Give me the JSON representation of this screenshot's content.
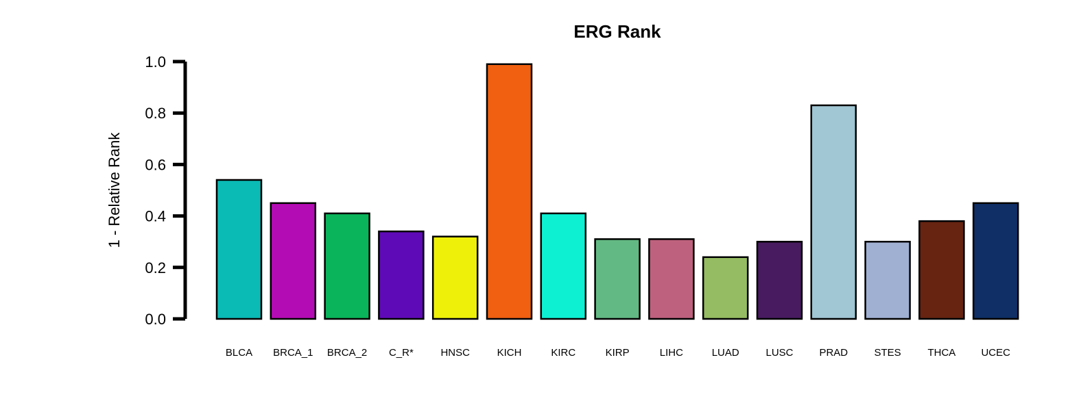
{
  "chart_data": {
    "type": "bar",
    "title": "ERG Rank",
    "xlabel": "",
    "ylabel": "1 - Relative Rank",
    "ylim": [
      0,
      1
    ],
    "yticks": [
      "0.0",
      "0.2",
      "0.4",
      "0.6",
      "0.8",
      "1.0"
    ],
    "ytick_values": [
      0,
      0.2,
      0.4,
      0.6,
      0.8,
      1.0
    ],
    "grid": false,
    "legend": "none",
    "categories": [
      "BLCA",
      "BRCA_1",
      "BRCA_2",
      "C_R*",
      "HNSC",
      "KICH",
      "KIRC",
      "KIRP",
      "LIHC",
      "LUAD",
      "LUSC",
      "PRAD",
      "STES",
      "THCA",
      "UCEC"
    ],
    "values": [
      0.54,
      0.45,
      0.41,
      0.34,
      0.32,
      0.99,
      0.41,
      0.31,
      0.31,
      0.24,
      0.3,
      0.83,
      0.3,
      0.38,
      0.45
    ],
    "colors": [
      "#0abab5",
      "#b40cb4",
      "#0ab45a",
      "#5f0ab7",
      "#eef00a",
      "#f06010",
      "#0ef0d2",
      "#63b983",
      "#be617e",
      "#96bc63",
      "#481b60",
      "#a1c6d4",
      "#a0b0d3",
      "#662411",
      "#0f2f66"
    ]
  }
}
